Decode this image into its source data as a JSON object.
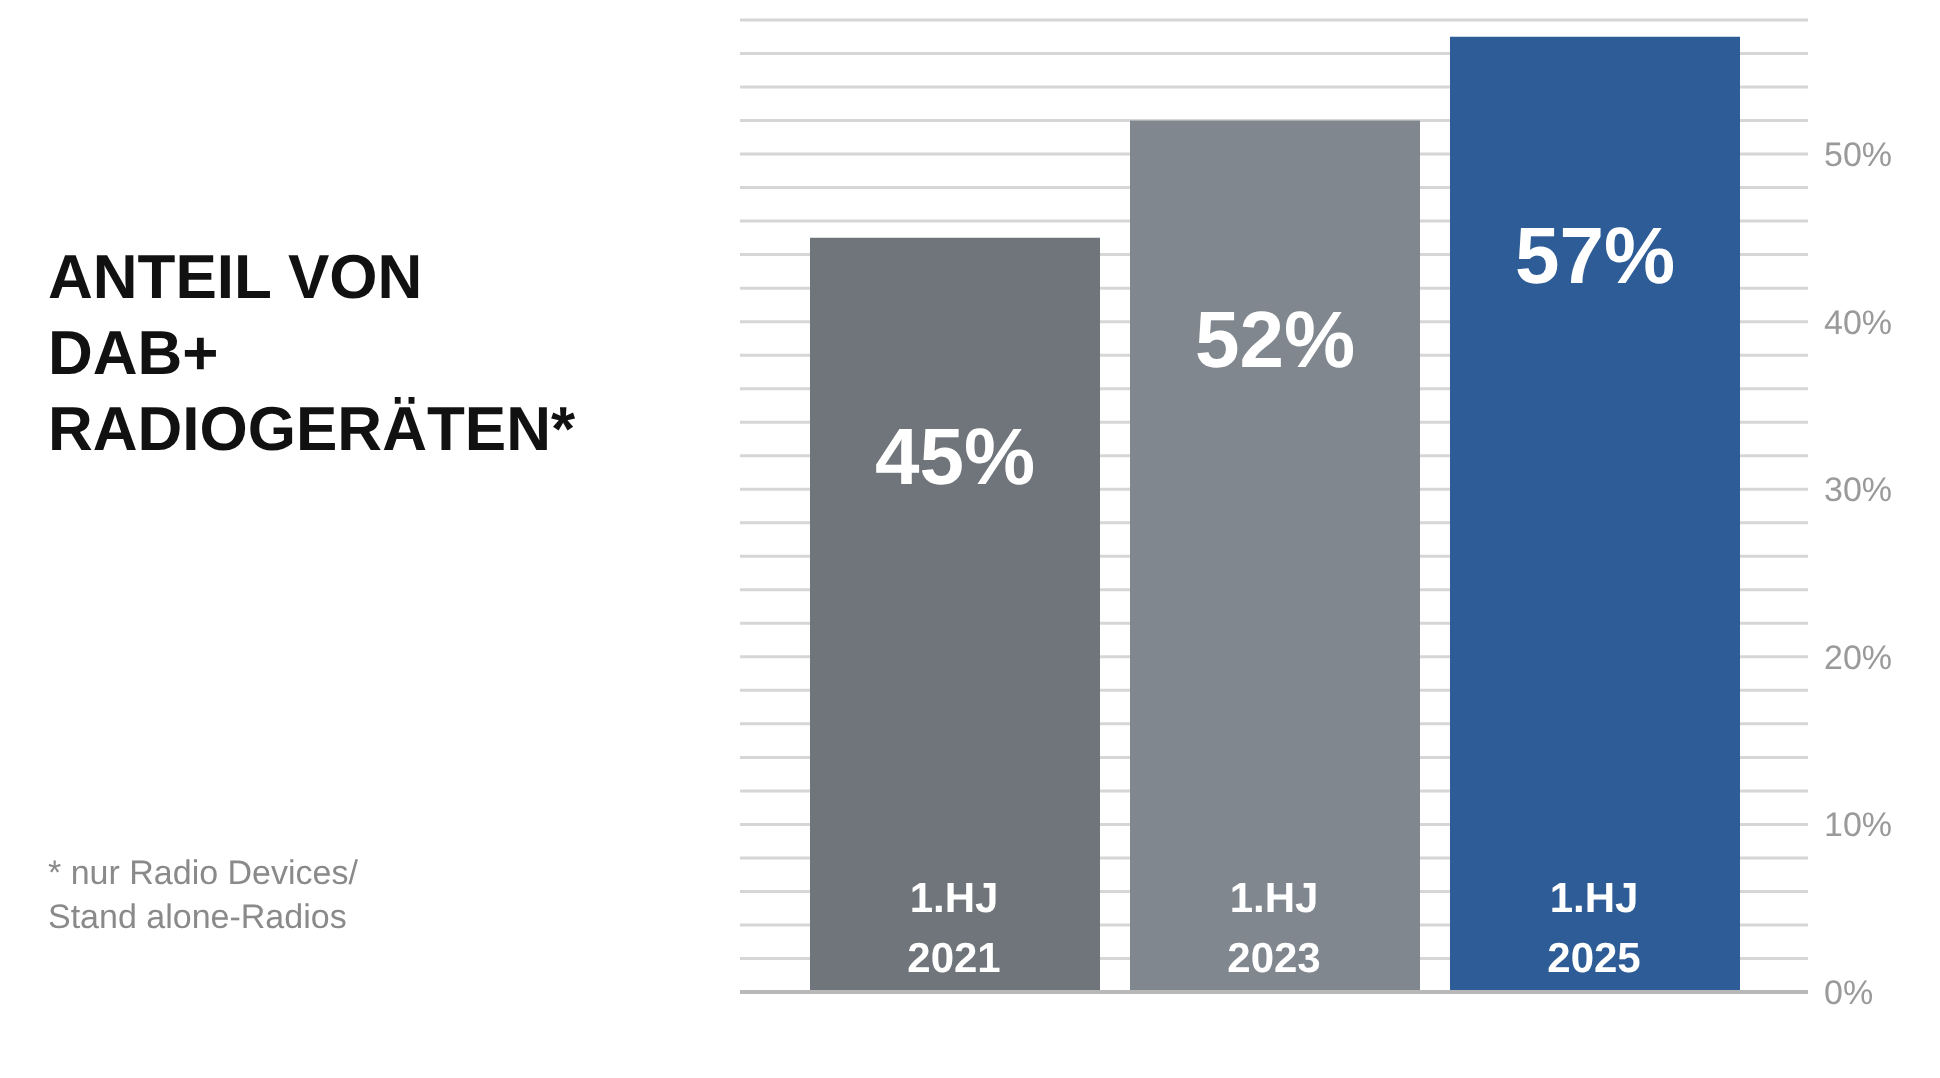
{
  "chart_data": {
    "type": "bar",
    "title": "ANTEIL VON\nDAB+\nRADIOGERÄTEN*",
    "annotations": [
      "* nur Radio Devices/\nStand alone-Radios"
    ],
    "categories": [
      "1.HJ 2021",
      "1.HJ 2023",
      "1.HJ 2025"
    ],
    "values": [
      45,
      52,
      57
    ],
    "colors": [
      "#6f757b",
      "#80878e",
      "#2d5c96"
    ],
    "value_labels": [
      "45%",
      "52%",
      "57%"
    ],
    "ylim": [
      0,
      58
    ],
    "yticks": [
      {
        "value": 0,
        "label": "0%"
      },
      {
        "value": 2,
        "label": null
      },
      {
        "value": 4,
        "label": null
      },
      {
        "value": 6,
        "label": null
      },
      {
        "value": 8,
        "label": null
      },
      {
        "value": 10,
        "label": "10%"
      },
      {
        "value": 12,
        "label": null
      },
      {
        "value": 14,
        "label": null
      },
      {
        "value": 16,
        "label": null
      },
      {
        "value": 18,
        "label": null
      },
      {
        "value": 20,
        "label": "20%"
      },
      {
        "value": 22,
        "label": null
      },
      {
        "value": 24,
        "label": null
      },
      {
        "value": 26,
        "label": null
      },
      {
        "value": 28,
        "label": null
      },
      {
        "value": 30,
        "label": "30%"
      },
      {
        "value": 32,
        "label": null
      },
      {
        "value": 34,
        "label": null
      },
      {
        "value": 36,
        "label": null
      },
      {
        "value": 38,
        "label": null
      },
      {
        "value": 40,
        "label": "40%"
      },
      {
        "value": 42,
        "label": null
      },
      {
        "value": 44,
        "label": null
      },
      {
        "value": 46,
        "label": null
      },
      {
        "value": 48,
        "label": null
      },
      {
        "value": 50,
        "label": "50%"
      },
      {
        "value": 52,
        "label": null
      },
      {
        "value": 54,
        "label": null
      },
      {
        "value": 56,
        "label": null
      },
      {
        "value": 58,
        "label": null
      }
    ],
    "grid": "y"
  }
}
